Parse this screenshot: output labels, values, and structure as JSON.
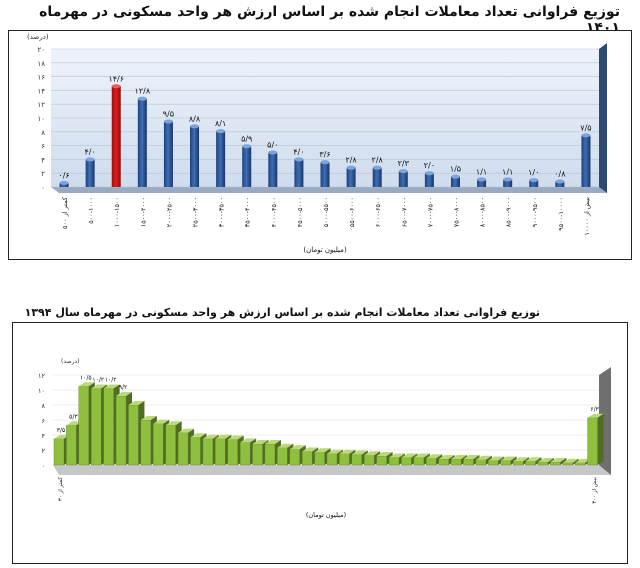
{
  "chart_data": [
    {
      "type": "bar",
      "title": "توزیع فراوانی تعداد معاملات انجام شده بر اساس ارزش هر واحد مسکونی در مهرماه ۱۴۰۱",
      "ylabel": "(درصد)",
      "xlabel": "(میلیون تومان)",
      "ylim": [
        0,
        20
      ],
      "yticks": [
        "۰",
        "۲",
        "۴",
        "۶",
        "۸",
        "۱۰",
        "۱۲",
        "۱۴",
        "۱۶",
        "۱۸",
        "۲۰"
      ],
      "categories": [
        "کمتر از ۵۰۰",
        "۵۰۰-۱۰۰۰",
        "۱۰۰۰-۱۵۰۰",
        "۱۵۰۰-۲۰۰۰",
        "۲۰۰۰-۲۵۰۰",
        "۲۵۰۰-۳۰۰۰",
        "۳۰۰۰-۳۵۰۰",
        "۳۵۰۰-۴۰۰۰",
        "۴۰۰۰-۴۵۰۰",
        "۴۵۰۰-۵۰۰۰",
        "۵۰۰۰-۵۵۰۰",
        "۵۵۰۰-۶۰۰۰",
        "۶۰۰۰-۶۵۰۰",
        "۶۵۰۰-۷۰۰۰",
        "۷۰۰۰-۷۵۰۰",
        "۷۵۰۰-۸۰۰۰",
        "۸۰۰۰-۸۵۰۰",
        "۸۵۰۰-۹۰۰۰",
        "۹۰۰۰-۹۵۰۰",
        "۹۵۰۰-۱۰۰۰۰",
        "بیش از ۱۰۰۰۰"
      ],
      "values": [
        0.6,
        4.0,
        14.6,
        12.8,
        9.5,
        8.8,
        8.1,
        5.9,
        5.0,
        4.0,
        3.6,
        2.8,
        2.8,
        2.3,
        2.0,
        1.5,
        1.1,
        1.1,
        1.0,
        0.8,
        7.5
      ],
      "value_labels": [
        "۰/۶",
        "۴/۰",
        "۱۴/۶",
        "۱۲/۸",
        "۹/۵",
        "۸/۸",
        "۸/۱",
        "۵/۹",
        "۵/۰",
        "۴/۰",
        "۳/۶",
        "۲/۸",
        "۲/۸",
        "۲/۳",
        "۲/۰",
        "۱/۵",
        "۱/۱",
        "۱/۱",
        "۱/۰",
        "۰/۸",
        "۷/۵"
      ],
      "highlight_index": 2,
      "colors": {
        "bar": "#3d6fb7",
        "highlight": "#e01b1b",
        "plot_bg": "#cfdcee",
        "wall": "#8ea3bf"
      }
    },
    {
      "type": "bar",
      "title": "توزیع فراوانی تعداد معاملات انجام شده بر اساس ارزش هر واحد مسکونی در مهرماه سال ۱۳۹۴",
      "ylabel": "(درصد)",
      "xlabel": "(میلیون تومان)",
      "ylim": [
        0,
        12
      ],
      "yticks": [
        "۰",
        "۲",
        "۴",
        "۶",
        "۸",
        "۱۰",
        "۱۲"
      ],
      "values": [
        3.5,
        5.3,
        10.5,
        10.2,
        10.2,
        9.2,
        8.0,
        6.0,
        5.5,
        5.3,
        4.3,
        3.7,
        3.5,
        3.5,
        3.4,
        3.0,
        2.8,
        2.8,
        2.3,
        2.1,
        1.8,
        1.7,
        1.5,
        1.5,
        1.4,
        1.3,
        1.2,
        1.0,
        1.0,
        1.0,
        0.9,
        0.8,
        0.8,
        0.8,
        0.7,
        0.6,
        0.6,
        0.5,
        0.5,
        0.4,
        0.4,
        0.3,
        0.3,
        6.3
      ],
      "value_labels": [
        "۳/۵",
        "۵/۳",
        "۱۰/۵",
        "۱۰/۲",
        "۱۰/۲",
        "۹/۲",
        "",
        "",
        "",
        "",
        "",
        "",
        "",
        "",
        "",
        "",
        "",
        "",
        "",
        "",
        "",
        "",
        "",
        "",
        "",
        "",
        "",
        "",
        "",
        "",
        "",
        "",
        "",
        "",
        "",
        "",
        "",
        "",
        "",
        "",
        "",
        "",
        "",
        "۶/۳"
      ],
      "first_category": "کمتر از ۳۰",
      "last_category": "بیش از ۳۰۰",
      "colors": {
        "bar": "#8fbf3f",
        "bar_dark": "#4f6e22",
        "plot_bg": "#ffffff",
        "wall": "#7a7a7a"
      }
    }
  ]
}
